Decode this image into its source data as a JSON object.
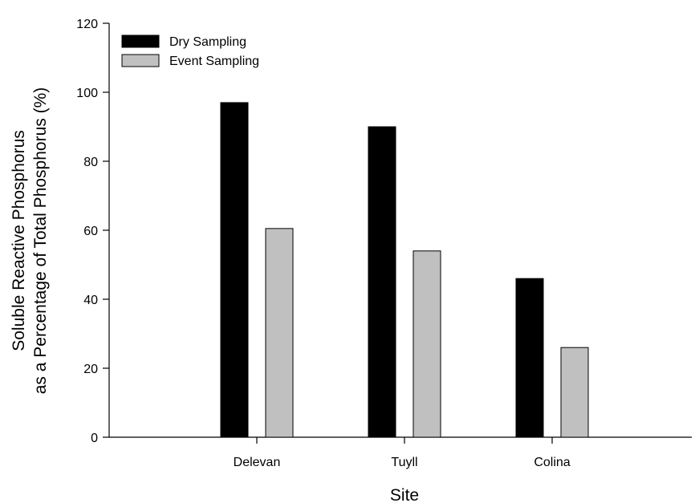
{
  "chart_data": {
    "type": "bar",
    "title": "",
    "xlabel": "Site",
    "ylabel_lines": [
      "Soluble Reactive Phosphorus",
      "as a Percentage of Total Phosphorus (%)"
    ],
    "categories": [
      "Delevan",
      "Tuyll",
      "Colina"
    ],
    "series": [
      {
        "name": "Dry Sampling",
        "color": "#000000",
        "values": [
          97,
          90,
          46
        ]
      },
      {
        "name": "Event Sampling",
        "color": "#c0c0c0",
        "values": [
          60.5,
          54,
          26
        ]
      }
    ],
    "ylim": [
      0,
      120
    ],
    "yticks": [
      0,
      20,
      40,
      60,
      80,
      100,
      120
    ],
    "grid": false,
    "legend_position": "top-left"
  }
}
